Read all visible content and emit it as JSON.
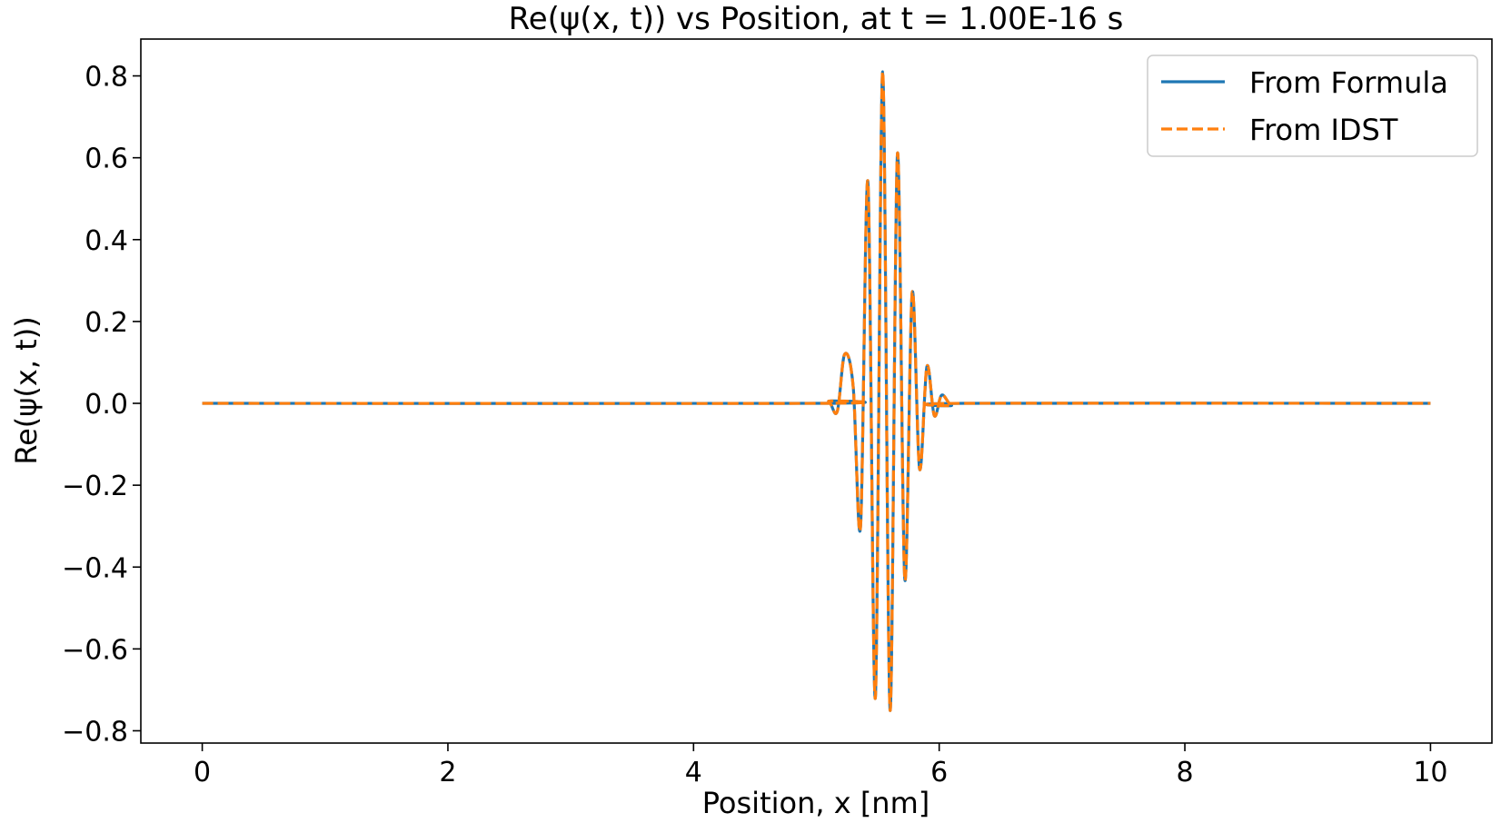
{
  "chart_data": {
    "type": "line",
    "title": "Re(ψ(x, t)) vs Position, at t = 1.00E-16 s",
    "xlabel": "Position, x [nm]",
    "ylabel": "Re(ψ(x, t))",
    "xlim": [
      -0.5,
      10.5
    ],
    "ylim": [
      -0.83,
      0.89
    ],
    "xticks": [
      0,
      2,
      4,
      6,
      8,
      10
    ],
    "xtick_labels": [
      "0",
      "2",
      "4",
      "6",
      "8",
      "10"
    ],
    "yticks": [
      0.8,
      0.6,
      0.4,
      0.2,
      0.0,
      -0.2,
      -0.4,
      -0.6,
      -0.8
    ],
    "ytick_labels": [
      "0.8",
      "0.6",
      "0.4",
      "0.2",
      "0.0",
      "−0.2",
      "−0.4",
      "−0.6",
      "−0.8"
    ],
    "grid": false,
    "legend_position": "top-right",
    "series": [
      {
        "name": "From Formula",
        "color": "#1f77b4",
        "dash": "solid",
        "x": [
          0,
          5.0,
          5.1,
          5.17,
          5.23,
          5.3,
          5.36,
          5.42,
          5.48,
          5.54,
          5.6,
          5.66,
          5.72,
          5.78,
          5.84,
          5.9,
          5.96,
          6.02,
          6.1,
          6.2,
          10.0
        ],
        "y": [
          0,
          0,
          0.005,
          -0.02,
          0.12,
          0.04,
          -0.3,
          0.54,
          -0.72,
          0.81,
          -0.75,
          0.61,
          -0.43,
          0.27,
          -0.16,
          0.09,
          -0.03,
          0.02,
          -0.005,
          0,
          0
        ]
      },
      {
        "name": "From IDST",
        "color": "#ff7f0e",
        "dash": "dashed",
        "x": [
          0,
          5.0,
          5.1,
          5.17,
          5.23,
          5.3,
          5.36,
          5.42,
          5.48,
          5.54,
          5.6,
          5.66,
          5.72,
          5.78,
          5.84,
          5.9,
          5.96,
          6.02,
          6.1,
          6.2,
          10.0
        ],
        "y": [
          0,
          0,
          0.005,
          -0.02,
          0.12,
          0.04,
          -0.3,
          0.54,
          -0.72,
          0.81,
          -0.75,
          0.61,
          -0.43,
          0.27,
          -0.16,
          0.09,
          -0.03,
          0.02,
          -0.005,
          0,
          0
        ]
      }
    ]
  }
}
